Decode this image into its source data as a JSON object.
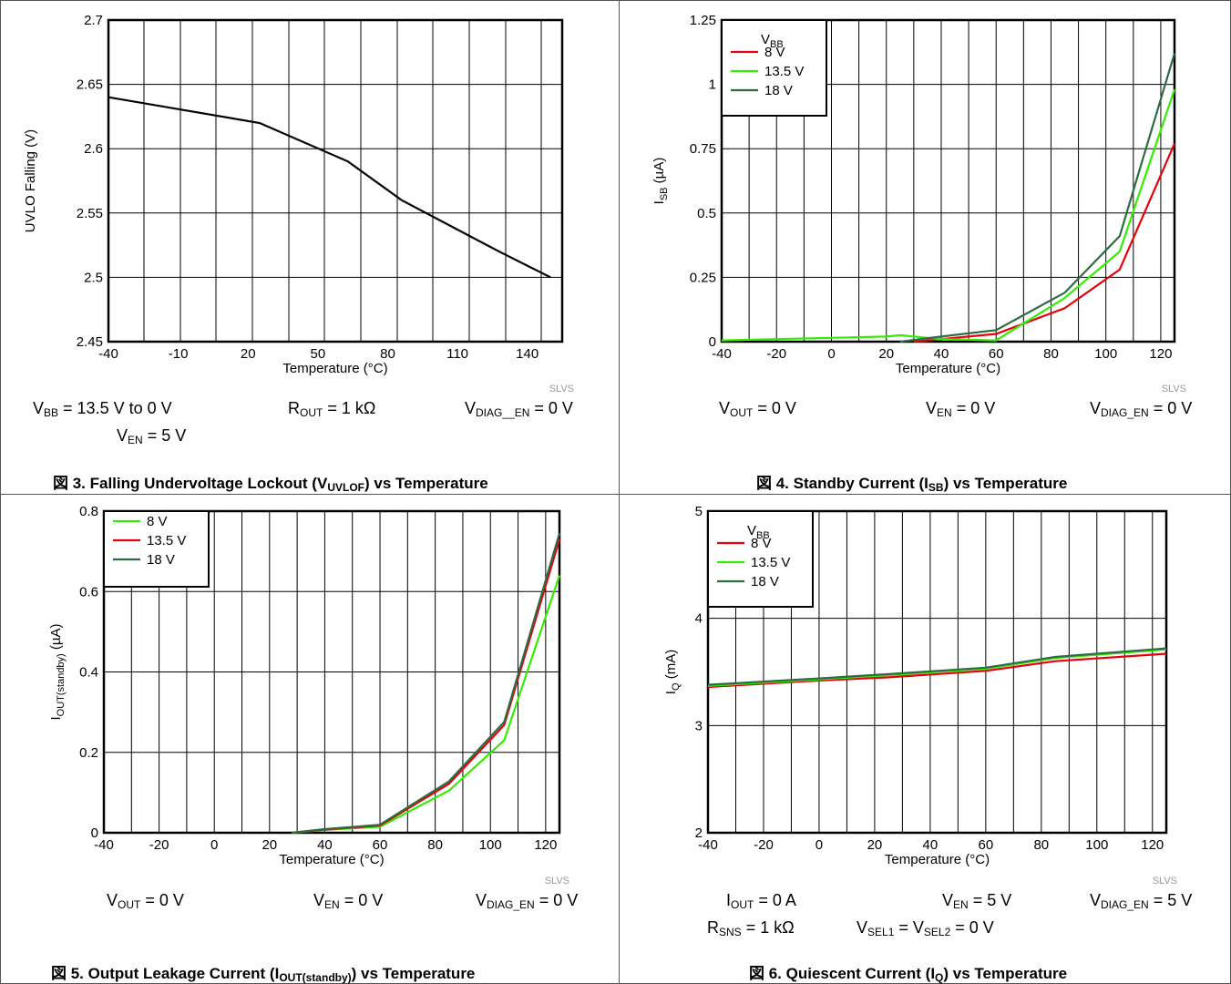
{
  "colors": {
    "red": "#e8000b",
    "green": "#33ee00",
    "darkgreen": "#2e6b45",
    "black": "#000000"
  },
  "chart_data": [
    {
      "id": "c3",
      "type": "line",
      "xlabel": "Temperature (°C)",
      "ylabel": "UVLO Falling (V)",
      "xlim": [
        -40,
        155
      ],
      "ylim": [
        2.45,
        2.7
      ],
      "xticks": [
        "-40",
        "-10",
        "20",
        "50",
        "80",
        "110",
        "140"
      ],
      "yticks": [
        "2.45",
        "2.5",
        "2.55",
        "2.6",
        "2.65",
        "2.7"
      ],
      "tag": "SLVS",
      "series": [
        {
          "color": "black",
          "x": [
            -40,
            25,
            63,
            86,
            128,
            150
          ],
          "y": [
            2.64,
            2.62,
            2.59,
            2.56,
            2.52,
            2.5
          ]
        }
      ]
    },
    {
      "id": "c4",
      "type": "line",
      "xlabel": "Temperature (°C)",
      "ylabel_main": "I",
      "ylabel_sub": "SB",
      "ylabel_tail": " (µA)",
      "xlim": [
        -40,
        125
      ],
      "ylim": [
        0,
        1.25
      ],
      "xticks": [
        "-40",
        "-20",
        "0",
        "20",
        "40",
        "60",
        "80",
        "100",
        "120"
      ],
      "yticks": [
        "0",
        "0.25",
        "0.5",
        "0.75",
        "1",
        "1.25"
      ],
      "tag": "SLVS",
      "legend": {
        "title_main": "V",
        "title_sub": "BB",
        "entries": [
          "8 V",
          "13.5 V",
          "18 V"
        ]
      },
      "series": [
        {
          "name": "8 V",
          "color": "red",
          "x": [
            30,
            40,
            60,
            85,
            105,
            125
          ],
          "y": [
            0.0,
            0.01,
            0.03,
            0.13,
            0.28,
            0.77
          ]
        },
        {
          "name": "13.5 V",
          "color": "green",
          "x": [
            -40,
            -20,
            0,
            20,
            25,
            40,
            60,
            85,
            105,
            125
          ],
          "y": [
            0.005,
            0.01,
            0.015,
            0.02,
            0.025,
            0.01,
            0.005,
            0.17,
            0.35,
            0.98
          ]
        },
        {
          "name": "18 V",
          "color": "darkgreen",
          "x": [
            25,
            40,
            60,
            85,
            105,
            125
          ],
          "y": [
            0.0,
            0.02,
            0.045,
            0.19,
            0.41,
            1.12
          ]
        }
      ]
    },
    {
      "id": "c5",
      "type": "line",
      "xlabel": "Temperature (°C)",
      "ylabel_main": "I",
      "ylabel_sub": "OUT(standby)",
      "ylabel_tail": " (µA)",
      "xlim": [
        -40,
        125
      ],
      "ylim": [
        0,
        0.8
      ],
      "xticks": [
        "-40",
        "-20",
        "0",
        "20",
        "40",
        "60",
        "80",
        "100",
        "120"
      ],
      "yticks": [
        "0",
        "0.2",
        "0.4",
        "0.6",
        "0.8"
      ],
      "tag": "SLVS",
      "legend": {
        "entries": [
          "8 V",
          "13.5 V",
          "18 V"
        ]
      },
      "series": [
        {
          "name": "8 V",
          "color": "green",
          "x": [
            28,
            40,
            60,
            85,
            105,
            125
          ],
          "y": [
            0.0,
            0.007,
            0.015,
            0.105,
            0.23,
            0.64
          ]
        },
        {
          "name": "13.5 V",
          "color": "red",
          "x": [
            28,
            40,
            60,
            85,
            105,
            125
          ],
          "y": [
            0.0,
            0.008,
            0.018,
            0.122,
            0.268,
            0.73
          ]
        },
        {
          "name": "18 V",
          "color": "darkgreen",
          "x": [
            28,
            40,
            60,
            85,
            105,
            125
          ],
          "y": [
            0.0,
            0.009,
            0.02,
            0.128,
            0.276,
            0.745
          ]
        }
      ]
    },
    {
      "id": "c6",
      "type": "line",
      "xlabel": "Temperature (°C)",
      "ylabel_main": "I",
      "ylabel_sub": "Q",
      "ylabel_tail": " (mA)",
      "xlim": [
        -40,
        125
      ],
      "ylim": [
        2,
        5
      ],
      "xticks": [
        "-40",
        "-20",
        "0",
        "20",
        "40",
        "60",
        "80",
        "100",
        "120"
      ],
      "yticks": [
        "2",
        "3",
        "4",
        "5"
      ],
      "tag": "SLVS",
      "legend": {
        "title_main": "V",
        "title_sub": "BB",
        "entries": [
          "8 V",
          "13.5 V",
          "18 V"
        ]
      },
      "series": [
        {
          "name": "8 V",
          "color": "red",
          "x": [
            -40,
            0,
            25,
            60,
            85,
            125
          ],
          "y": [
            3.36,
            3.42,
            3.45,
            3.51,
            3.6,
            3.67
          ]
        },
        {
          "name": "13.5 V",
          "color": "green",
          "x": [
            -40,
            0,
            25,
            60,
            85,
            125
          ],
          "y": [
            3.37,
            3.43,
            3.47,
            3.53,
            3.63,
            3.71
          ]
        },
        {
          "name": "18 V",
          "color": "darkgreen",
          "x": [
            -40,
            0,
            25,
            60,
            85,
            125
          ],
          "y": [
            3.38,
            3.44,
            3.48,
            3.54,
            3.64,
            3.72
          ]
        }
      ]
    }
  ],
  "captions": {
    "c3": {
      "a_main": "V",
      "a_sub": "BB",
      "a_tail": " = 13.5 V to 0 V",
      "b_main": "R",
      "b_sub": "OUT",
      "b_tail": " = 1 kΩ",
      "c_main": "V",
      "c_sub": "DIAG__EN",
      "c_tail": " = 0 V",
      "d_main": "V",
      "d_sub": "EN",
      "d_tail": " = 5 V"
    },
    "c4": {
      "a_main": "V",
      "a_sub": "OUT",
      "a_tail": " = 0 V",
      "b_main": "V",
      "b_sub": "EN",
      "b_tail": " = 0 V",
      "c_main": "V",
      "c_sub": "DIAG_EN",
      "c_tail": " = 0 V"
    },
    "c5": {
      "a_main": "V",
      "a_sub": "OUT",
      "a_tail": " = 0 V",
      "b_main": "V",
      "b_sub": "EN",
      "b_tail": " = 0 V",
      "c_main": "V",
      "c_sub": "DIAG_EN",
      "c_tail": " = 0 V"
    },
    "c6": {
      "a_main": "I",
      "a_sub": "OUT",
      "a_tail": " = 0 A",
      "b_main": "V",
      "b_sub": "EN",
      "b_tail": " = 5 V",
      "c_main": "V",
      "c_sub": "DIAG_EN",
      "c_tail": " = 5 V",
      "d_main": "R",
      "d_sub": "SNS",
      "d_tail": " = 1 kΩ",
      "e_main": "V",
      "e_sub": "SEL1",
      "e_mid": " = V",
      "e_sub2": "SEL2",
      "e_tail": " = 0 V"
    }
  },
  "figures": {
    "f3": {
      "num": "図 3. Falling Undervoltage Lockout (V",
      "sub": "UVLOF",
      "tail": ") vs Temperature"
    },
    "f4": {
      "num": "図 4. Standby Current (I",
      "sub": "SB",
      "tail": ") vs Temperature"
    },
    "f5": {
      "num": "図 5. Output Leakage Current (I",
      "sub": "OUT(standby)",
      "tail": ") vs Temperature"
    },
    "f6": {
      "num": "図 6. Quiescent Current (I",
      "sub": "Q",
      "tail": ") vs Temperature"
    }
  }
}
